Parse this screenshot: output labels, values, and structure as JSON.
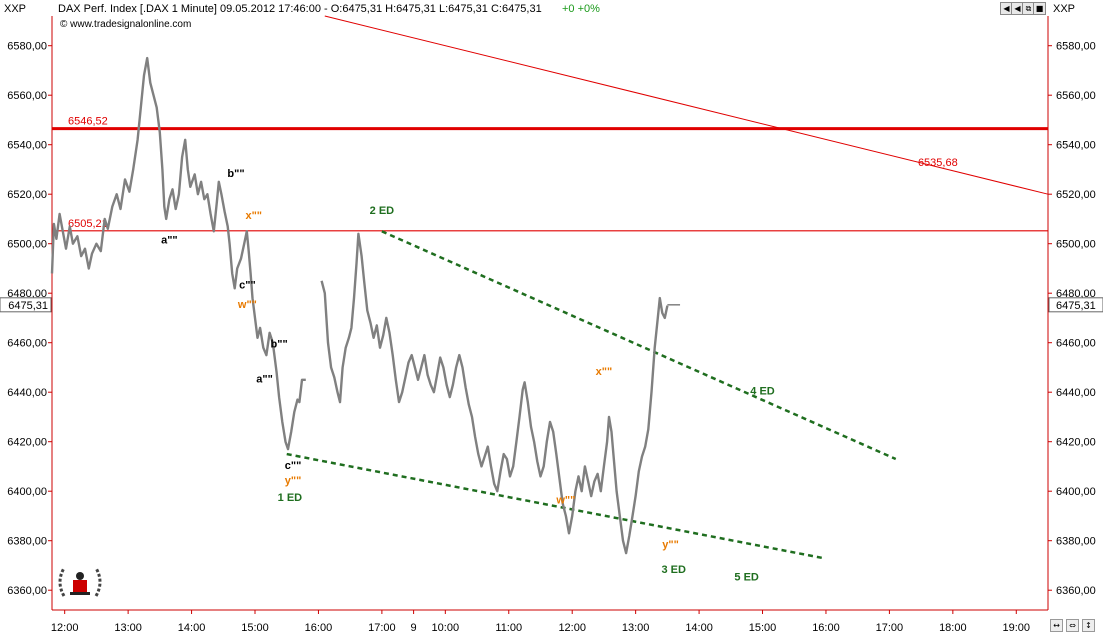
{
  "window": {
    "symbol_left": "XXP",
    "symbol_right": "XXP",
    "title": "DAX Perf. Index [.DAX  1 Minute] 09.05.2012 17:46:00 - O:6475,31 H:6475,31 L:6475,31 C:6475,31",
    "change": "+0 +0%",
    "watermark": "© www.tradesignalonline.com",
    "buttons": [
      "◀",
      "◀",
      "⧉",
      "■",
      "✕"
    ],
    "nav_buttons": [
      "↔",
      "⇔",
      "↕"
    ]
  },
  "colors": {
    "price": "#808080",
    "resistance": "#e00000",
    "channel": "#1f6e1f",
    "orange_label": "#e87a00",
    "axis": "#cc0000"
  },
  "chart_data": {
    "type": "line",
    "ylim": [
      6352,
      6592
    ],
    "y_ticks": [
      "6360,00",
      "6380,00",
      "6400,00",
      "6420,00",
      "6440,00",
      "6460,00",
      "6480,00",
      "6500,00",
      "6520,00",
      "6540,00",
      "6560,00",
      "6580,00"
    ],
    "y_tick_values": [
      6360,
      6380,
      6400,
      6420,
      6440,
      6460,
      6480,
      6500,
      6520,
      6540,
      6560,
      6580
    ],
    "x_ticks": [
      "12:00",
      "13:00",
      "14:00",
      "15:00",
      "16:00",
      "17:00",
      "9",
      "10:00",
      "11:00",
      "12:00",
      "13:00",
      "14:00",
      "15:00",
      "16:00",
      "17:00",
      "18:00",
      "19:00"
    ],
    "x_tick_pos": [
      2.5,
      3.5,
      4.5,
      5.5,
      6.5,
      7.5,
      8.0,
      8.5,
      9.5,
      10.5,
      11.5,
      12.5,
      13.5,
      14.5,
      15.5,
      16.5,
      17.5
    ],
    "x_range": [
      2.3,
      18.0
    ],
    "last_price_label": "6475,31",
    "last_price": 6475.31,
    "series": [
      {
        "values": [
          [
            2.3,
            6488
          ],
          [
            2.33,
            6508
          ],
          [
            2.37,
            6502
          ],
          [
            2.42,
            6512
          ],
          [
            2.47,
            6505
          ],
          [
            2.52,
            6498
          ],
          [
            2.58,
            6507
          ],
          [
            2.63,
            6500
          ],
          [
            2.7,
            6503
          ],
          [
            2.76,
            6495
          ],
          [
            2.82,
            6498
          ],
          [
            2.88,
            6490
          ],
          [
            2.93,
            6496
          ],
          [
            3.0,
            6500
          ],
          [
            3.07,
            6497
          ],
          [
            3.13,
            6510
          ],
          [
            3.18,
            6506
          ],
          [
            3.25,
            6515
          ],
          [
            3.32,
            6520
          ],
          [
            3.38,
            6514
          ],
          [
            3.45,
            6526
          ],
          [
            3.52,
            6521
          ],
          [
            3.58,
            6530
          ],
          [
            3.65,
            6542
          ],
          [
            3.7,
            6555
          ],
          [
            3.75,
            6568
          ],
          [
            3.8,
            6575
          ],
          [
            3.85,
            6565
          ],
          [
            3.9,
            6560
          ],
          [
            3.95,
            6555
          ],
          [
            4.0,
            6545
          ],
          [
            4.04,
            6530
          ],
          [
            4.07,
            6515
          ],
          [
            4.1,
            6510
          ],
          [
            4.15,
            6518
          ],
          [
            4.2,
            6522
          ],
          [
            4.25,
            6514
          ],
          [
            4.3,
            6520
          ],
          [
            4.35,
            6535
          ],
          [
            4.4,
            6542
          ],
          [
            4.44,
            6530
          ],
          [
            4.48,
            6523
          ],
          [
            4.55,
            6528
          ],
          [
            4.6,
            6520
          ],
          [
            4.65,
            6525
          ],
          [
            4.7,
            6518
          ],
          [
            4.75,
            6520
          ],
          [
            4.8,
            6512
          ],
          [
            4.85,
            6505
          ],
          [
            4.9,
            6517
          ],
          [
            4.93,
            6525
          ],
          [
            4.97,
            6520
          ],
          [
            5.02,
            6513
          ],
          [
            5.07,
            6507
          ],
          [
            5.1,
            6500
          ],
          [
            5.14,
            6488
          ],
          [
            5.18,
            6482
          ],
          [
            5.22,
            6490
          ],
          [
            5.28,
            6494
          ],
          [
            5.33,
            6500
          ],
          [
            5.37,
            6505
          ],
          [
            5.4,
            6497
          ],
          [
            5.43,
            6488
          ],
          [
            5.46,
            6478
          ],
          [
            5.5,
            6470
          ],
          [
            5.54,
            6462
          ],
          [
            5.58,
            6466
          ],
          [
            5.63,
            6458
          ],
          [
            5.68,
            6455
          ],
          [
            5.73,
            6464
          ],
          [
            5.78,
            6460
          ],
          [
            5.84,
            6448
          ],
          [
            5.88,
            6438
          ],
          [
            5.93,
            6428
          ],
          [
            5.98,
            6420
          ],
          [
            6.02,
            6417
          ],
          [
            6.07,
            6424
          ],
          [
            6.12,
            6432
          ],
          [
            6.17,
            6437
          ],
          [
            6.2,
            6436
          ],
          [
            6.24,
            6445
          ],
          [
            6.3,
            6445
          ],
          [
            6.55,
            6485
          ],
          [
            6.6,
            6480
          ],
          [
            6.65,
            6460
          ],
          [
            6.7,
            6450
          ],
          [
            6.75,
            6446
          ],
          [
            6.8,
            6440
          ],
          [
            6.84,
            6436
          ],
          [
            6.88,
            6450
          ],
          [
            6.93,
            6458
          ],
          [
            6.98,
            6462
          ],
          [
            7.02,
            6466
          ],
          [
            7.06,
            6478
          ],
          [
            7.1,
            6492
          ],
          [
            7.13,
            6504
          ],
          [
            7.18,
            6495
          ],
          [
            7.22,
            6485
          ],
          [
            7.27,
            6473
          ],
          [
            7.32,
            6468
          ],
          [
            7.37,
            6462
          ],
          [
            7.42,
            6467
          ],
          [
            7.47,
            6458
          ],
          [
            7.52,
            6463
          ],
          [
            7.57,
            6470
          ],
          [
            7.62,
            6464
          ],
          [
            7.67,
            6455
          ],
          [
            7.72,
            6445
          ],
          [
            7.77,
            6436
          ],
          [
            7.82,
            6440
          ],
          [
            7.87,
            6446
          ],
          [
            7.92,
            6452
          ],
          [
            7.97,
            6455
          ],
          [
            8.02,
            6450
          ],
          [
            8.07,
            6445
          ],
          [
            8.12,
            6450
          ],
          [
            8.17,
            6455
          ],
          [
            8.22,
            6447
          ],
          [
            8.27,
            6443
          ],
          [
            8.32,
            6440
          ],
          [
            8.37,
            6447
          ],
          [
            8.42,
            6454
          ],
          [
            8.47,
            6450
          ],
          [
            8.52,
            6443
          ],
          [
            8.57,
            6438
          ],
          [
            8.62,
            6443
          ],
          [
            8.67,
            6450
          ],
          [
            8.72,
            6455
          ],
          [
            8.77,
            6450
          ],
          [
            8.82,
            6442
          ],
          [
            8.87,
            6435
          ],
          [
            8.92,
            6430
          ],
          [
            8.97,
            6422
          ],
          [
            9.02,
            6415
          ],
          [
            9.07,
            6410
          ],
          [
            9.12,
            6414
          ],
          [
            9.17,
            6418
          ],
          [
            9.22,
            6410
          ],
          [
            9.27,
            6403
          ],
          [
            9.32,
            6400
          ],
          [
            9.37,
            6408
          ],
          [
            9.42,
            6415
          ],
          [
            9.47,
            6413
          ],
          [
            9.52,
            6406
          ],
          [
            9.57,
            6410
          ],
          [
            9.62,
            6420
          ],
          [
            9.67,
            6430
          ],
          [
            9.72,
            6441
          ],
          [
            9.75,
            6444
          ],
          [
            9.8,
            6436
          ],
          [
            9.85,
            6426
          ],
          [
            9.9,
            6420
          ],
          [
            9.95,
            6412
          ],
          [
            10.0,
            6406
          ],
          [
            10.05,
            6410
          ],
          [
            10.1,
            6420
          ],
          [
            10.15,
            6428
          ],
          [
            10.2,
            6424
          ],
          [
            10.25,
            6415
          ],
          [
            10.3,
            6405
          ],
          [
            10.35,
            6395
          ],
          [
            10.4,
            6390
          ],
          [
            10.45,
            6383
          ],
          [
            10.5,
            6390
          ],
          [
            10.55,
            6400
          ],
          [
            10.6,
            6406
          ],
          [
            10.65,
            6400
          ],
          [
            10.7,
            6410
          ],
          [
            10.75,
            6404
          ],
          [
            10.8,
            6398
          ],
          [
            10.85,
            6404
          ],
          [
            10.9,
            6407
          ],
          [
            10.95,
            6400
          ],
          [
            11.0,
            6410
          ],
          [
            11.05,
            6420
          ],
          [
            11.08,
            6430
          ],
          [
            11.12,
            6424
          ],
          [
            11.15,
            6415
          ],
          [
            11.2,
            6400
          ],
          [
            11.25,
            6390
          ],
          [
            11.3,
            6380
          ],
          [
            11.35,
            6375
          ],
          [
            11.4,
            6382
          ],
          [
            11.45,
            6390
          ],
          [
            11.5,
            6398
          ],
          [
            11.55,
            6408
          ],
          [
            11.6,
            6414
          ],
          [
            11.65,
            6418
          ],
          [
            11.7,
            6425
          ],
          [
            11.75,
            6440
          ],
          [
            11.8,
            6458
          ],
          [
            11.85,
            6470
          ],
          [
            11.88,
            6478
          ],
          [
            11.92,
            6472
          ],
          [
            11.96,
            6470
          ],
          [
            12.0,
            6475
          ]
        ]
      }
    ],
    "levels": [
      {
        "label": "6546,52",
        "value": 6546.52,
        "heavy": true
      },
      {
        "label": "6505,21",
        "value": 6505.21,
        "heavy": false
      }
    ],
    "trendline": {
      "x1": 6.6,
      "y1": 6592,
      "x2": 18.0,
      "y2": 6520,
      "label": "6535,68"
    },
    "channel_lines": [
      {
        "x1": 6.0,
        "y1": 6415,
        "x2": 14.45,
        "y2": 6373
      },
      {
        "x1": 7.5,
        "y1": 6505,
        "x2": 15.6,
        "y2": 6413
      }
    ],
    "annotations": [
      {
        "text": "a\"\"",
        "x": 4.15,
        "y": 6500,
        "color": "black"
      },
      {
        "text": "b\"\"",
        "x": 5.2,
        "y": 6527,
        "color": "black"
      },
      {
        "text": "x\"\"",
        "x": 5.48,
        "y": 6510,
        "color": "orange"
      },
      {
        "text": "c\"\"",
        "x": 5.38,
        "y": 6482,
        "color": "black"
      },
      {
        "text": "w\"\"",
        "x": 5.38,
        "y": 6474,
        "color": "orange"
      },
      {
        "text": "b\"\"",
        "x": 5.88,
        "y": 6458,
        "color": "black"
      },
      {
        "text": "a\"\"",
        "x": 5.65,
        "y": 6444,
        "color": "black"
      },
      {
        "text": "c\"\"",
        "x": 6.1,
        "y": 6409,
        "color": "black"
      },
      {
        "text": "y\"\"",
        "x": 6.1,
        "y": 6403,
        "color": "orange"
      },
      {
        "text": "1 ED",
        "x": 6.05,
        "y": 6396,
        "color": "green"
      },
      {
        "text": "2 ED",
        "x": 7.5,
        "y": 6512,
        "color": "green"
      },
      {
        "text": "x\"\"",
        "x": 11.0,
        "y": 6447,
        "color": "orange"
      },
      {
        "text": "4 ED",
        "x": 13.5,
        "y": 6439,
        "color": "green"
      },
      {
        "text": "w\"\"",
        "x": 10.4,
        "y": 6395,
        "color": "orange"
      },
      {
        "text": "y\"\"",
        "x": 12.05,
        "y": 6377,
        "color": "orange"
      },
      {
        "text": "3 ED",
        "x": 12.1,
        "y": 6367,
        "color": "green"
      },
      {
        "text": "5 ED",
        "x": 13.25,
        "y": 6364,
        "color": "green"
      }
    ]
  }
}
